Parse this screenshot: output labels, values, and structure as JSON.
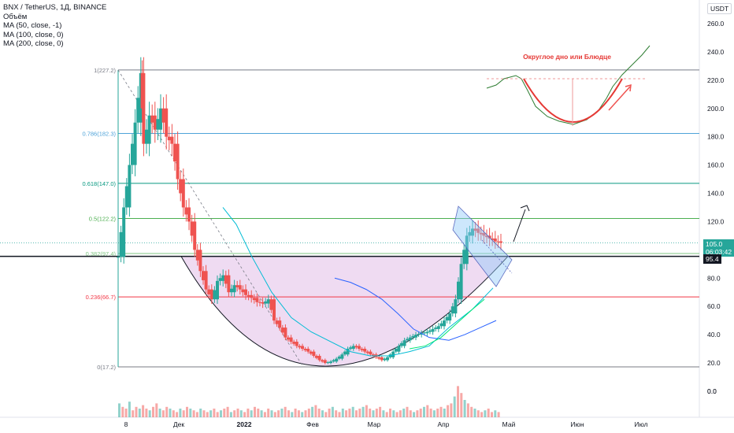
{
  "header": {
    "symbol_line": "BNX / TetherUS, 1Д, BINANCE",
    "volume_label": "Объём",
    "ma50": "MA (50, close, -1)",
    "ma100": "MA (100, close, 0)",
    "ma200": "MA (200, close, 0)"
  },
  "currency_button": "USDT",
  "price_tags": {
    "last_price": "105.0",
    "countdown": "06:03:42",
    "level": "95.4"
  },
  "inset_label": "Округлое дно или Блюдце",
  "colors": {
    "up": "#26a69a",
    "down": "#ef5350",
    "fib_100": "#787b86",
    "fib_786": "#4fa3d9",
    "fib_618": "#089981",
    "fib_500": "#4caf50",
    "fib_382": "#81c784",
    "fib_236": "#f23645",
    "fib_0": "#787b86",
    "cup_fill": "#e1bee7",
    "ma50": "#00bcd4",
    "ma100": "#2962ff",
    "ma200": "#00e676"
  },
  "chart_data": {
    "type": "candlestick",
    "yaxis": {
      "ticks": [
        0,
        20,
        40,
        60,
        80,
        100,
        120,
        140,
        160,
        180,
        200,
        220,
        240,
        260
      ],
      "ylim": [
        -15,
        270
      ]
    },
    "xaxis": {
      "ticks": [
        "8",
        "Дек",
        "2022",
        "Фев",
        "Мар",
        "Апр",
        "Май",
        "Июн",
        "Июл"
      ]
    },
    "fib_levels": [
      {
        "label": "1(227.2)",
        "value": 227.2,
        "color": "#787b86"
      },
      {
        "label": "0.786(182.3)",
        "value": 182.3,
        "color": "#4fa3d9"
      },
      {
        "label": "0.618(147.0)",
        "value": 147.0,
        "color": "#089981"
      },
      {
        "label": "0.5(122.2)",
        "value": 122.2,
        "color": "#4caf50"
      },
      {
        "label": "0.382(97.4)",
        "value": 97.4,
        "color": "#81c784"
      },
      {
        "label": "0.236(66.7)",
        "value": 66.7,
        "color": "#f23645"
      },
      {
        "label": "0(17.2)",
        "value": 17.2,
        "color": "#787b86"
      }
    ],
    "horizontal_line": 95.4,
    "last_price": 105.0,
    "price_path": [
      [
        0,
        95
      ],
      [
        2,
        130
      ],
      [
        4,
        160
      ],
      [
        6,
        190
      ],
      [
        8,
        225
      ],
      [
        9,
        175
      ],
      [
        11,
        195
      ],
      [
        13,
        185
      ],
      [
        15,
        200
      ],
      [
        17,
        180
      ],
      [
        19,
        175
      ],
      [
        21,
        150
      ],
      [
        23,
        130
      ],
      [
        25,
        120
      ],
      [
        27,
        100
      ],
      [
        29,
        85
      ],
      [
        31,
        72
      ],
      [
        33,
        65
      ],
      [
        35,
        78
      ],
      [
        37,
        82
      ],
      [
        39,
        70
      ],
      [
        41,
        75
      ],
      [
        43,
        72
      ],
      [
        45,
        68
      ],
      [
        47,
        66
      ],
      [
        49,
        63
      ],
      [
        51,
        62
      ],
      [
        53,
        65
      ],
      [
        55,
        50
      ],
      [
        57,
        45
      ],
      [
        59,
        38
      ],
      [
        61,
        35
      ],
      [
        63,
        32
      ],
      [
        65,
        30
      ],
      [
        67,
        28
      ],
      [
        69,
        25
      ],
      [
        71,
        22
      ],
      [
        73,
        20
      ],
      [
        75,
        21
      ],
      [
        77,
        23
      ],
      [
        79,
        26
      ],
      [
        81,
        30
      ],
      [
        83,
        32
      ],
      [
        85,
        30
      ],
      [
        87,
        28
      ],
      [
        89,
        26
      ],
      [
        91,
        24
      ],
      [
        93,
        22
      ],
      [
        95,
        24
      ],
      [
        97,
        28
      ],
      [
        99,
        32
      ],
      [
        101,
        36
      ],
      [
        103,
        38
      ],
      [
        105,
        40
      ],
      [
        107,
        41
      ],
      [
        109,
        42
      ],
      [
        111,
        44
      ],
      [
        113,
        46
      ],
      [
        115,
        50
      ],
      [
        117,
        55
      ],
      [
        119,
        65
      ],
      [
        121,
        90
      ],
      [
        123,
        110
      ],
      [
        125,
        115
      ],
      [
        127,
        112
      ],
      [
        129,
        110
      ],
      [
        131,
        108
      ],
      [
        133,
        106
      ],
      [
        135,
        105
      ]
    ],
    "volume": [
      8,
      6,
      5,
      9,
      4,
      6,
      5,
      7,
      5,
      4,
      6,
      8,
      5,
      4,
      6,
      5,
      4,
      3,
      5,
      4,
      6,
      5,
      4,
      3,
      5,
      4,
      3,
      4,
      5,
      3,
      4,
      5,
      6,
      3,
      4,
      5,
      4,
      3,
      5,
      4,
      6,
      5,
      4,
      3,
      5,
      4,
      3,
      4,
      5,
      6,
      4,
      3,
      5,
      4,
      3,
      4,
      5,
      6,
      7,
      5,
      4,
      3,
      5,
      6,
      4,
      3,
      5,
      4,
      5,
      6,
      4,
      5,
      6,
      7,
      5,
      4,
      5,
      6,
      4,
      3,
      5,
      4,
      3,
      4,
      5,
      6,
      4,
      3,
      4,
      5,
      6,
      7,
      5,
      4,
      5,
      6,
      5,
      7,
      8,
      12,
      18,
      14,
      10,
      8,
      6,
      5,
      4,
      3,
      4,
      5,
      3,
      4,
      3
    ]
  }
}
